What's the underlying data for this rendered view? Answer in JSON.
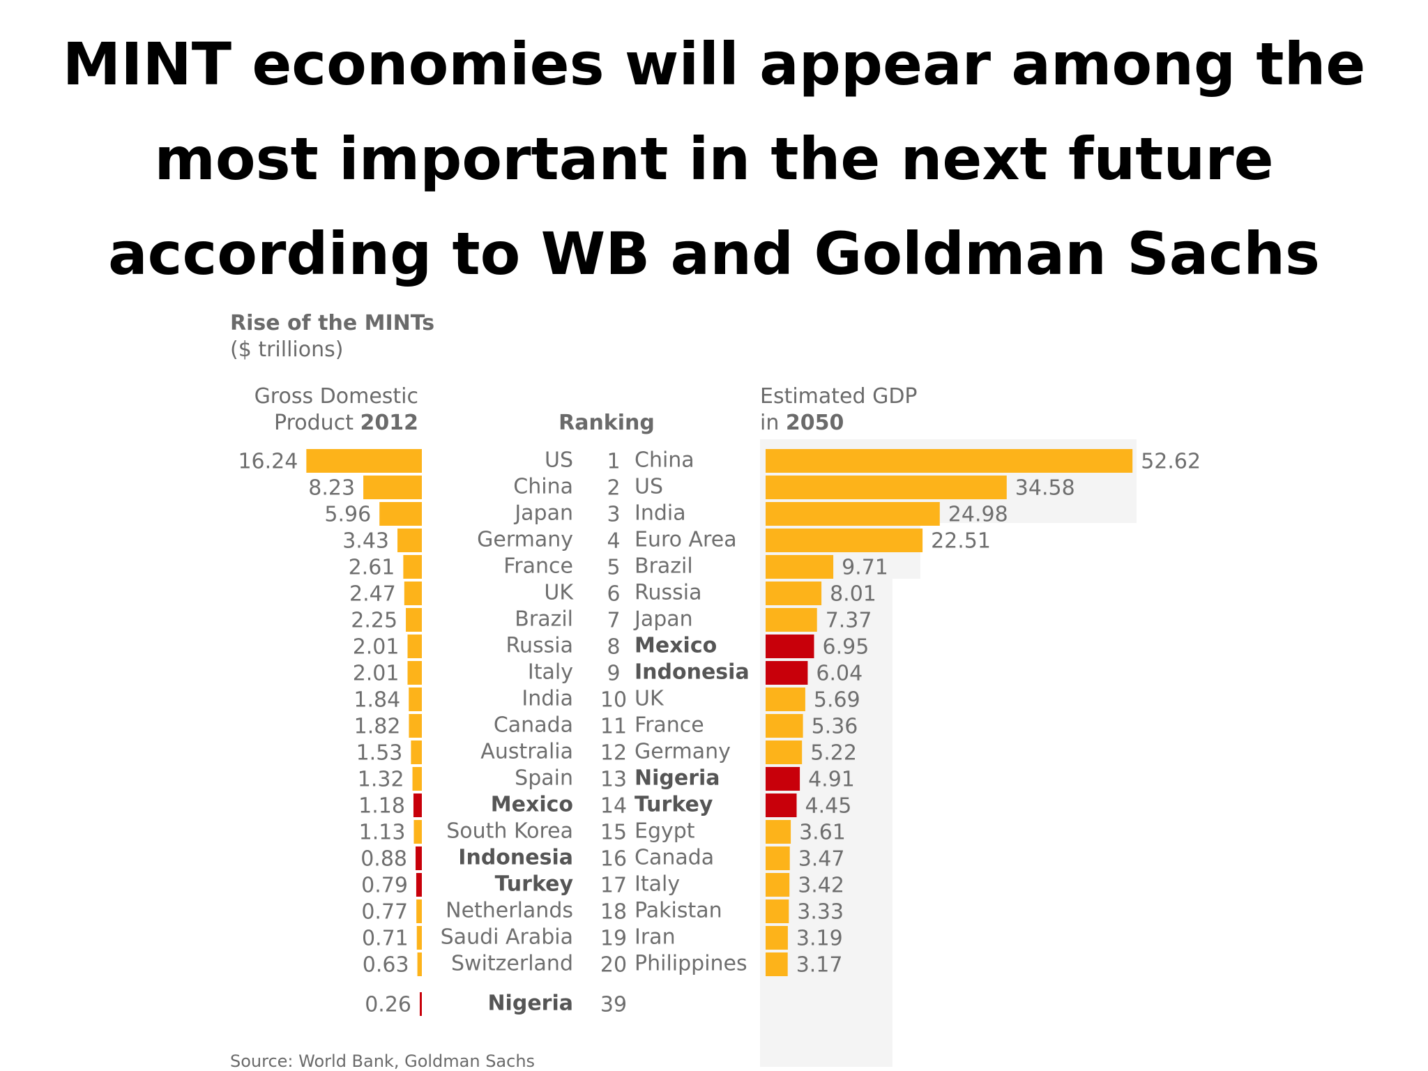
{
  "slide": {
    "title_lines": [
      "MINT economies will appear among the",
      "most important in the next future",
      "according to WB and Goldman Sachs"
    ]
  },
  "colors": {
    "bar": "#FDB31A",
    "mint_bar": "#C8000A",
    "background_band": "#F4F4F4"
  },
  "chart_data": {
    "type": "bar",
    "title": "Rise of the MINTs",
    "unit": "($ trillions)",
    "left_header_line1": "Gross Domestic",
    "left_header_line2_prefix": "Product ",
    "left_header_line2_bold": "2012",
    "rank_header": "Ranking",
    "right_header_line1": "Estimated GDP",
    "right_header_line2_prefix": "in ",
    "right_header_line2_bold": "2050",
    "source": "Source: World Bank, Goldman Sachs",
    "gdp_2012": [
      {
        "rank": "1",
        "country": "US",
        "value": "16.24",
        "mint": false
      },
      {
        "rank": "2",
        "country": "China",
        "value": "8.23",
        "mint": false
      },
      {
        "rank": "3",
        "country": "Japan",
        "value": "5.96",
        "mint": false
      },
      {
        "rank": "4",
        "country": "Germany",
        "value": "3.43",
        "mint": false
      },
      {
        "rank": "5",
        "country": "France",
        "value": "2.61",
        "mint": false
      },
      {
        "rank": "6",
        "country": "UK",
        "value": "2.47",
        "mint": false
      },
      {
        "rank": "7",
        "country": "Brazil",
        "value": "2.25",
        "mint": false
      },
      {
        "rank": "8",
        "country": "Russia",
        "value": "2.01",
        "mint": false
      },
      {
        "rank": "9",
        "country": "Italy",
        "value": "2.01",
        "mint": false
      },
      {
        "rank": "10",
        "country": "India",
        "value": "1.84",
        "mint": false
      },
      {
        "rank": "11",
        "country": "Canada",
        "value": "1.82",
        "mint": false
      },
      {
        "rank": "12",
        "country": "Australia",
        "value": "1.53",
        "mint": false
      },
      {
        "rank": "13",
        "country": "Spain",
        "value": "1.32",
        "mint": false
      },
      {
        "rank": "14",
        "country": "Mexico",
        "value": "1.18",
        "mint": true
      },
      {
        "rank": "15",
        "country": "South Korea",
        "value": "1.13",
        "mint": false
      },
      {
        "rank": "16",
        "country": "Indonesia",
        "value": "0.88",
        "mint": true
      },
      {
        "rank": "17",
        "country": "Turkey",
        "value": "0.79",
        "mint": true
      },
      {
        "rank": "18",
        "country": "Netherlands",
        "value": "0.77",
        "mint": false
      },
      {
        "rank": "19",
        "country": "Saudi Arabia",
        "value": "0.71",
        "mint": false
      },
      {
        "rank": "20",
        "country": "Switzerland",
        "value": "0.63",
        "mint": false
      },
      {
        "rank": "39",
        "country": "Nigeria",
        "value": "0.26",
        "mint": true
      }
    ],
    "gdp_2050": [
      {
        "rank": "1",
        "country": "China",
        "value": "52.62",
        "mint": false
      },
      {
        "rank": "2",
        "country": "US",
        "value": "34.58",
        "mint": false
      },
      {
        "rank": "3",
        "country": "India",
        "value": "24.98",
        "mint": false
      },
      {
        "rank": "4",
        "country": "Euro Area",
        "value": "22.51",
        "mint": false
      },
      {
        "rank": "5",
        "country": "Brazil",
        "value": "9.71",
        "mint": false
      },
      {
        "rank": "6",
        "country": "Russia",
        "value": "8.01",
        "mint": false
      },
      {
        "rank": "7",
        "country": "Japan",
        "value": "7.37",
        "mint": false
      },
      {
        "rank": "8",
        "country": "Mexico",
        "value": "6.95",
        "mint": true
      },
      {
        "rank": "9",
        "country": "Indonesia",
        "value": "6.04",
        "mint": true
      },
      {
        "rank": "10",
        "country": "UK",
        "value": "5.69",
        "mint": false
      },
      {
        "rank": "11",
        "country": "France",
        "value": "5.36",
        "mint": false
      },
      {
        "rank": "12",
        "country": "Germany",
        "value": "5.22",
        "mint": false
      },
      {
        "rank": "13",
        "country": "Nigeria",
        "value": "4.91",
        "mint": true
      },
      {
        "rank": "14",
        "country": "Turkey",
        "value": "4.45",
        "mint": true
      },
      {
        "rank": "15",
        "country": "Egypt",
        "value": "3.61",
        "mint": false
      },
      {
        "rank": "16",
        "country": "Canada",
        "value": "3.47",
        "mint": false
      },
      {
        "rank": "17",
        "country": "Italy",
        "value": "3.42",
        "mint": false
      },
      {
        "rank": "18",
        "country": "Pakistan",
        "value": "3.33",
        "mint": false
      },
      {
        "rank": "19",
        "country": "Iran",
        "value": "3.19",
        "mint": false
      },
      {
        "rank": "20",
        "country": "Philippines",
        "value": "3.17",
        "mint": false
      }
    ]
  }
}
